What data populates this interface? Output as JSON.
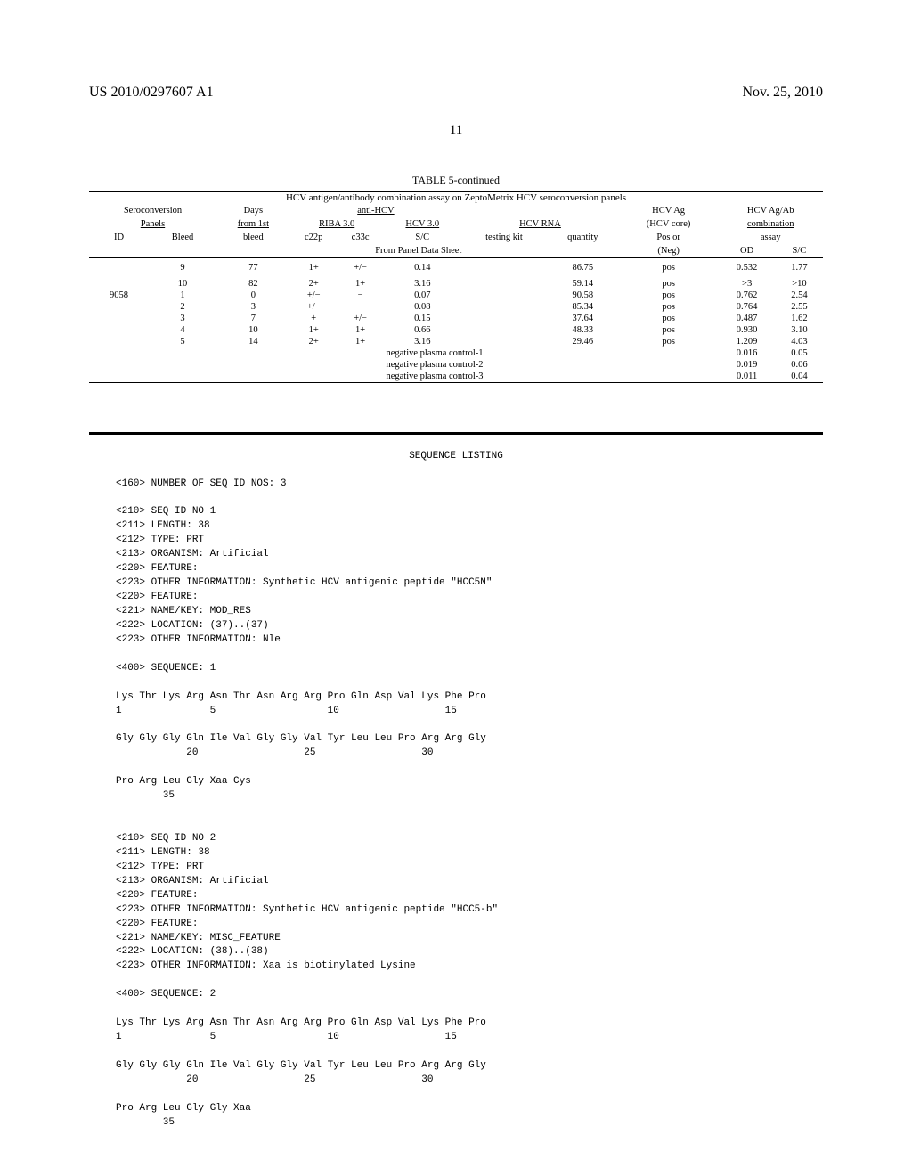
{
  "header": {
    "left": "US 2010/0297607 A1",
    "right": "Nov. 25, 2010"
  },
  "page_number": "11",
  "table": {
    "caption": "TABLE 5-continued",
    "panel_subtitle": "HCV antigen/antibody combination assay on ZeptoMetrix HCV seroconversion panels",
    "header_row1": {
      "seroconversion": "Seroconversion",
      "days": "Days",
      "anti_hcv": "anti-HCV",
      "hcv_ag": "HCV Ag",
      "hcv_ag_ab": "HCV Ag/Ab"
    },
    "header_row2": {
      "panels": "Panels",
      "from_1st": "from 1st",
      "riba": "RIBA 3.0",
      "hcv30": "HCV 3.0",
      "hcv_rna": "HCV RNA",
      "hcv_core": "(HCV core)",
      "combination": "combination"
    },
    "header_row3": {
      "id": "ID",
      "bleed": "Bleed",
      "bleed2": "bleed",
      "c22p": "c22p",
      "c33c": "c33c",
      "sc": "S/C",
      "testing_kit": "testing kit",
      "quantity": "quantity",
      "pos_or": "Pos or",
      "assay": "assay"
    },
    "header_row4": {
      "from_panel": "From Panel Data Sheet",
      "neg": "(Neg)",
      "od": "OD",
      "sc": "S/C"
    },
    "rows": [
      {
        "id": "",
        "bleed": "9",
        "days": "77",
        "c22p": "1+",
        "c33c": "+/−",
        "sc": "0.14",
        "kit": "",
        "qty": "86.75",
        "pos": "pos",
        "od": "0.532",
        "sc2": "1.77"
      },
      {
        "id": "",
        "bleed": "10",
        "days": "82",
        "c22p": "2+",
        "c33c": "1+",
        "sc": "3.16",
        "kit": "",
        "qty": "59.14",
        "pos": "pos",
        "od": ">3",
        "sc2": ">10"
      },
      {
        "id": "9058",
        "bleed": "1",
        "days": "0",
        "c22p": "+/−",
        "c33c": "−",
        "sc": "0.07",
        "kit": "",
        "qty": "90.58",
        "pos": "pos",
        "od": "0.762",
        "sc2": "2.54"
      },
      {
        "id": "",
        "bleed": "2",
        "days": "3",
        "c22p": "+/−",
        "c33c": "−",
        "sc": "0.08",
        "kit": "",
        "qty": "85.34",
        "pos": "pos",
        "od": "0.764",
        "sc2": "2.55"
      },
      {
        "id": "",
        "bleed": "3",
        "days": "7",
        "c22p": "+",
        "c33c": "+/−",
        "sc": "0.15",
        "kit": "",
        "qty": "37.64",
        "pos": "pos",
        "od": "0.487",
        "sc2": "1.62"
      },
      {
        "id": "",
        "bleed": "4",
        "days": "10",
        "c22p": "1+",
        "c33c": "1+",
        "sc": "0.66",
        "kit": "",
        "qty": "48.33",
        "pos": "pos",
        "od": "0.930",
        "sc2": "3.10"
      },
      {
        "id": "",
        "bleed": "5",
        "days": "14",
        "c22p": "2+",
        "c33c": "1+",
        "sc": "3.16",
        "kit": "",
        "qty": "29.46",
        "pos": "pos",
        "od": "1.209",
        "sc2": "4.03"
      }
    ],
    "controls": [
      {
        "label": "negative plasma control-1",
        "od": "0.016",
        "sc": "0.05"
      },
      {
        "label": "negative plasma control-2",
        "od": "0.019",
        "sc": "0.06"
      },
      {
        "label": "negative plasma control-3",
        "od": "0.011",
        "sc": "0.04"
      }
    ]
  },
  "sequence": {
    "title": "SEQUENCE LISTING",
    "body": "<160> NUMBER OF SEQ ID NOS: 3\n\n<210> SEQ ID NO 1\n<211> LENGTH: 38\n<212> TYPE: PRT\n<213> ORGANISM: Artificial\n<220> FEATURE:\n<223> OTHER INFORMATION: Synthetic HCV antigenic peptide \"HCC5N\"\n<220> FEATURE:\n<221> NAME/KEY: MOD_RES\n<222> LOCATION: (37)..(37)\n<223> OTHER INFORMATION: Nle\n\n<400> SEQUENCE: 1\n\nLys Thr Lys Arg Asn Thr Asn Arg Arg Pro Gln Asp Val Lys Phe Pro\n1               5                   10                  15\n\nGly Gly Gly Gln Ile Val Gly Gly Val Tyr Leu Leu Pro Arg Arg Gly\n            20                  25                  30\n\nPro Arg Leu Gly Xaa Cys\n        35\n\n\n<210> SEQ ID NO 2\n<211> LENGTH: 38\n<212> TYPE: PRT\n<213> ORGANISM: Artificial\n<220> FEATURE:\n<223> OTHER INFORMATION: Synthetic HCV antigenic peptide \"HCC5-b\"\n<220> FEATURE:\n<221> NAME/KEY: MISC_FEATURE\n<222> LOCATION: (38)..(38)\n<223> OTHER INFORMATION: Xaa is biotinylated Lysine\n\n<400> SEQUENCE: 2\n\nLys Thr Lys Arg Asn Thr Asn Arg Arg Pro Gln Asp Val Lys Phe Pro\n1               5                   10                  15\n\nGly Gly Gly Gln Ile Val Gly Gly Val Tyr Leu Leu Pro Arg Arg Gly\n            20                  25                  30\n\nPro Arg Leu Gly Gly Xaa\n        35"
  }
}
